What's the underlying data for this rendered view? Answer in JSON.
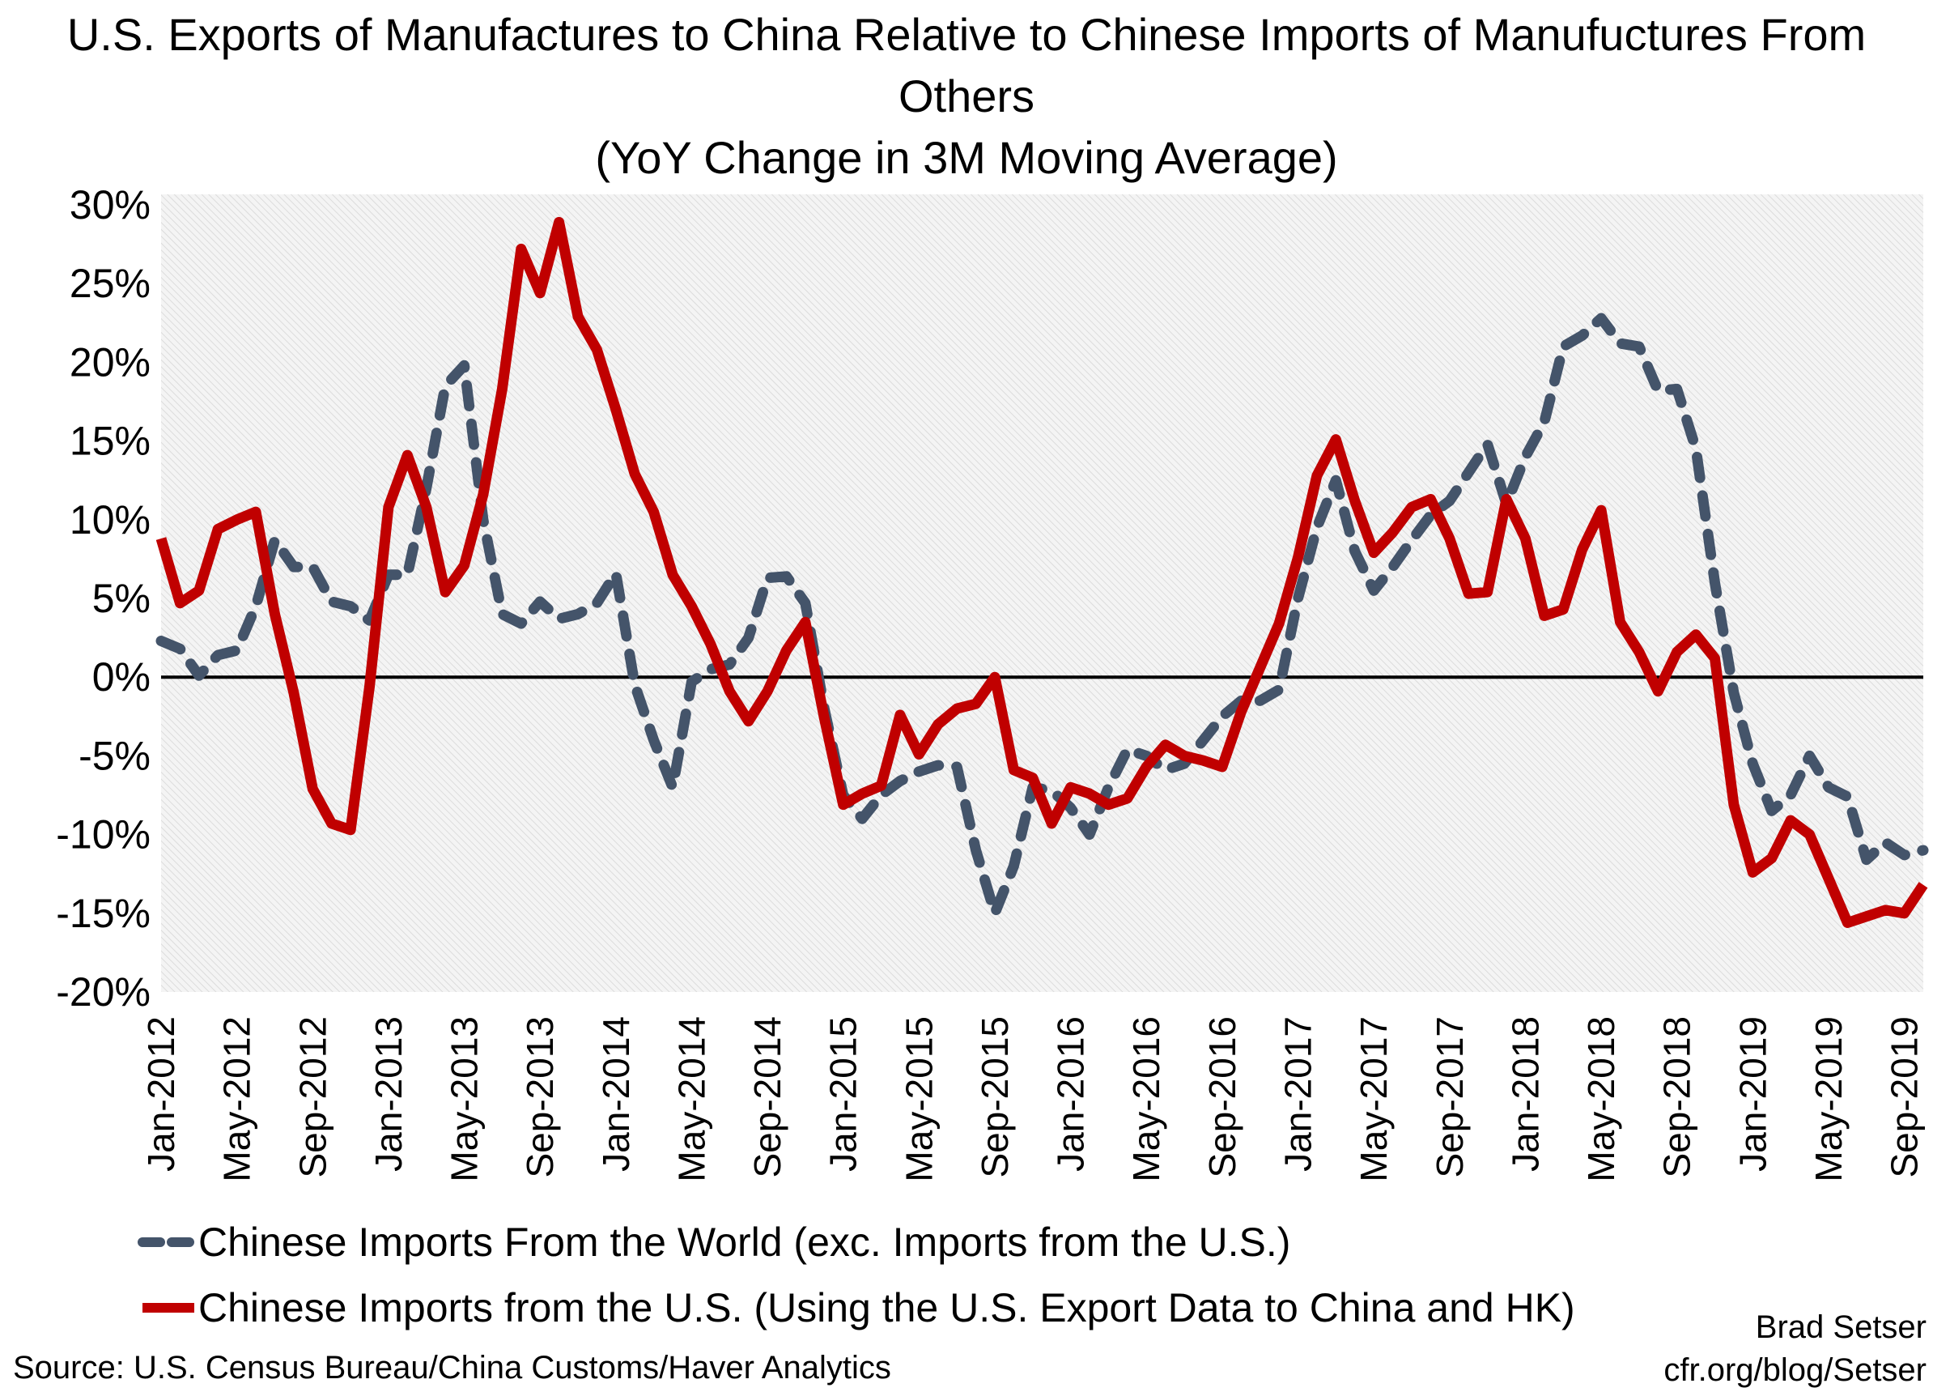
{
  "chart_data": {
    "type": "line",
    "title": [
      "U.S. Exports of Manufactures to China Relative to Chinese Imports of Manufuctures From",
      "Others",
      "(YoY Change in 3M Moving Average)"
    ],
    "xlabel": "",
    "ylabel": "",
    "ylim": [
      -20,
      30
    ],
    "y_ticks": [
      "30%",
      "25%",
      "20%",
      "15%",
      "10%",
      "5%",
      "0%",
      "-5%",
      "-10%",
      "-15%",
      "-20%"
    ],
    "y_tick_values": [
      30,
      25,
      20,
      15,
      10,
      5,
      0,
      -5,
      -10,
      -15,
      -20
    ],
    "x_start": "Jan-2012",
    "x_end": "Oct-2019",
    "x_tick_labels": [
      "Jan-2012",
      "May-2012",
      "Sep-2012",
      "Jan-2013",
      "May-2013",
      "Sep-2013",
      "Jan-2014",
      "May-2014",
      "Sep-2014",
      "Jan-2015",
      "May-2015",
      "Sep-2015",
      "Jan-2016",
      "May-2016",
      "Sep-2016",
      "Jan-2017",
      "May-2017",
      "Sep-2017",
      "Jan-2018",
      "May-2018",
      "Sep-2018",
      "Jan-2019",
      "May-2019",
      "Sep-2019"
    ],
    "grid": false,
    "background": "hatched light gray",
    "zero_line": true,
    "legend_position": "bottom",
    "series": [
      {
        "name": "Chinese Imports From the World (exc. Imports from the U.S.)",
        "color": "#44546A",
        "style": "dashed",
        "values": [
          2.3,
          1.8,
          0.1,
          1.4,
          1.7,
          4.5,
          8.7,
          7.0,
          7.0,
          4.8,
          4.5,
          3.6,
          6.5,
          6.5,
          12,
          18.5,
          19.8,
          10,
          4,
          3.4,
          4.8,
          3.7,
          4.0,
          4.7,
          6.6,
          -0.5,
          -4,
          -7,
          -0.3,
          0.5,
          0.8,
          2.5,
          6.3,
          6.4,
          4.7,
          -2.0,
          -7.5,
          -9,
          -7.5,
          -6.6,
          -6,
          -5.6,
          -5.7,
          -11,
          -15,
          -12,
          -7,
          -7.2,
          -8.3,
          -10,
          -7,
          -4.6,
          -5,
          -5.9,
          -5.5,
          -4,
          -2.5,
          -1.5,
          -1.5,
          -0.8,
          5,
          9.5,
          12.5,
          8,
          5.5,
          7,
          8.7,
          10.3,
          11.2,
          13,
          14.8,
          11,
          14,
          16.2,
          21,
          21.7,
          22.8,
          21.2,
          21,
          18.2,
          18.3,
          14.5,
          6,
          -1,
          -5.5,
          -8.5,
          -7.5,
          -5,
          -7,
          -7.6,
          -11.6,
          -10.5,
          -11.3,
          -11
        ]
      },
      {
        "name": "Chinese Imports from the U.S. (Using the U.S. Export Data to China and HK)",
        "color": "#C00000",
        "style": "solid",
        "values": [
          8.8,
          4.7,
          5.5,
          9.4,
          10,
          10.5,
          4,
          -1,
          -7.1,
          -9.3,
          -9.7,
          -0.6,
          10.8,
          14.1,
          10.8,
          5.4,
          7.1,
          11.6,
          18.3,
          27.2,
          24.4,
          28.9,
          22.9,
          20.8,
          17,
          12.9,
          10.5,
          6.5,
          4.5,
          2.1,
          -0.9,
          -2.8,
          -0.9,
          1.7,
          3.5,
          -2.6,
          -8.1,
          -7.4,
          -6.9,
          -2.4,
          -4.9,
          -3,
          -2,
          -1.7,
          0,
          -5.9,
          -6.4,
          -9.3,
          -7,
          -7.4,
          -8.1,
          -7.7,
          -5.7,
          -4.3,
          -5,
          -5.3,
          -5.7,
          -2.2,
          0.6,
          3.4,
          7.6,
          12.8,
          15.1,
          11.2,
          7.9,
          9.2,
          10.8,
          11.3,
          8.8,
          5.3,
          5.4,
          11.3,
          8.8,
          3.9,
          4.3,
          8.1,
          10.6,
          3.5,
          1.6,
          -0.9,
          1.6,
          2.7,
          1.2,
          -8.1,
          -12.4,
          -11.5,
          -9.1,
          -10,
          -12.8,
          -15.6,
          -15.2,
          -14.8,
          -15,
          -13.2
        ]
      }
    ]
  },
  "footer": {
    "source": "Source: U.S. Census Bureau/China Customs/Haver Analytics",
    "author": "Brad Setser",
    "url": "cfr.org/blog/Setser"
  }
}
